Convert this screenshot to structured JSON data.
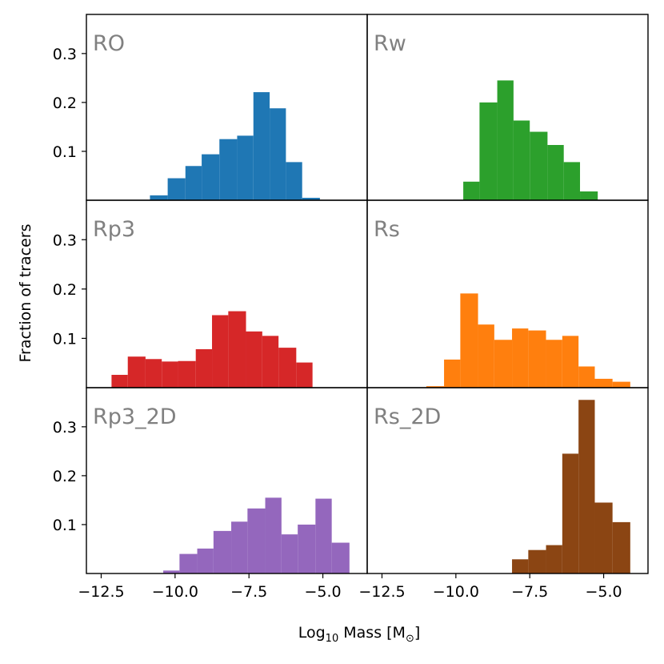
{
  "chart_data": {
    "type": "histogram-grid",
    "xlabel_main": "Log",
    "xlabel_sub": "10",
    "xlabel_rest": " Mass [M",
    "xlabel_sun": "⊙",
    "xlabel_close": "]",
    "ylabel": "Fraction of tracers",
    "xlim": [
      -13.0,
      -3.5
    ],
    "ylim": [
      0.0,
      0.38
    ],
    "x_ticks": [
      -12.5,
      -10.0,
      -7.5,
      -5.0
    ],
    "x_tick_labels": [
      "−12.5",
      "−10.0",
      "−7.5",
      "−5.0"
    ],
    "y_ticks": [
      0.1,
      0.2,
      0.3
    ],
    "y_tick_labels": [
      "0.1",
      "0.2",
      "0.3"
    ],
    "panels": [
      {
        "title": "RO",
        "color": "#1f77b4",
        "row": 0,
        "col": 0,
        "bins": [
          [
            -10.85,
            -10.25,
            0.01
          ],
          [
            -10.25,
            -9.65,
            0.045
          ],
          [
            -9.65,
            -9.1,
            0.07
          ],
          [
            -9.1,
            -8.5,
            0.094
          ],
          [
            -8.5,
            -7.9,
            0.125
          ],
          [
            -7.9,
            -7.35,
            0.132
          ],
          [
            -7.35,
            -6.8,
            0.221
          ],
          [
            -6.8,
            -6.25,
            0.188
          ],
          [
            -6.25,
            -5.7,
            0.078
          ],
          [
            -5.7,
            -5.1,
            0.005
          ]
        ]
      },
      {
        "title": "Rw",
        "color": "#2ca02c",
        "row": 0,
        "col": 1,
        "bins": [
          [
            -9.75,
            -9.2,
            0.038
          ],
          [
            -9.2,
            -8.6,
            0.2
          ],
          [
            -8.6,
            -8.05,
            0.245
          ],
          [
            -8.05,
            -7.5,
            0.163
          ],
          [
            -7.5,
            -6.9,
            0.14
          ],
          [
            -6.9,
            -6.35,
            0.113
          ],
          [
            -6.35,
            -5.8,
            0.078
          ],
          [
            -5.8,
            -5.2,
            0.018
          ]
        ]
      },
      {
        "title": "Rp3",
        "color": "#d62728",
        "row": 1,
        "col": 0,
        "bins": [
          [
            -12.15,
            -11.6,
            0.026
          ],
          [
            -11.6,
            -11.0,
            0.063
          ],
          [
            -11.0,
            -10.45,
            0.058
          ],
          [
            -10.45,
            -9.9,
            0.053
          ],
          [
            -9.9,
            -9.3,
            0.054
          ],
          [
            -9.3,
            -8.75,
            0.078
          ],
          [
            -8.75,
            -8.2,
            0.147
          ],
          [
            -8.2,
            -7.6,
            0.155
          ],
          [
            -7.6,
            -7.05,
            0.114
          ],
          [
            -7.05,
            -6.5,
            0.105
          ],
          [
            -6.5,
            -5.9,
            0.081
          ],
          [
            -5.9,
            -5.35,
            0.051
          ]
        ]
      },
      {
        "title": "Rs",
        "color": "#ff7f0e",
        "row": 1,
        "col": 1,
        "bins": [
          [
            -11.0,
            -10.4,
            0.003
          ],
          [
            -10.4,
            -9.85,
            0.057
          ],
          [
            -9.85,
            -9.25,
            0.191
          ],
          [
            -9.25,
            -8.7,
            0.128
          ],
          [
            -8.7,
            -8.1,
            0.097
          ],
          [
            -8.1,
            -7.55,
            0.12
          ],
          [
            -7.55,
            -6.95,
            0.116
          ],
          [
            -6.95,
            -6.4,
            0.097
          ],
          [
            -6.4,
            -5.85,
            0.105
          ],
          [
            -5.85,
            -5.3,
            0.043
          ],
          [
            -5.3,
            -4.7,
            0.018
          ],
          [
            -4.7,
            -4.1,
            0.012
          ]
        ]
      },
      {
        "title": "Rp3_2D",
        "color": "#9467bd",
        "row": 2,
        "col": 0,
        "bins": [
          [
            -10.4,
            -9.85,
            0.006
          ],
          [
            -9.85,
            -9.25,
            0.04
          ],
          [
            -9.25,
            -8.7,
            0.051
          ],
          [
            -8.7,
            -8.1,
            0.087
          ],
          [
            -8.1,
            -7.55,
            0.106
          ],
          [
            -7.55,
            -6.95,
            0.133
          ],
          [
            -6.95,
            -6.4,
            0.155
          ],
          [
            -6.4,
            -5.85,
            0.08
          ],
          [
            -5.85,
            -5.25,
            0.1
          ],
          [
            -5.25,
            -4.7,
            0.153
          ],
          [
            -4.7,
            -4.1,
            0.063
          ]
        ]
      },
      {
        "title": "Rs_2D",
        "color": "#8b4513",
        "row": 2,
        "col": 1,
        "bins": [
          [
            -8.1,
            -7.55,
            0.029
          ],
          [
            -7.55,
            -6.95,
            0.048
          ],
          [
            -6.95,
            -6.4,
            0.058
          ],
          [
            -6.4,
            -5.85,
            0.245
          ],
          [
            -5.85,
            -5.3,
            0.355
          ],
          [
            -5.3,
            -4.7,
            0.145
          ],
          [
            -4.7,
            -4.1,
            0.105
          ]
        ]
      }
    ]
  }
}
